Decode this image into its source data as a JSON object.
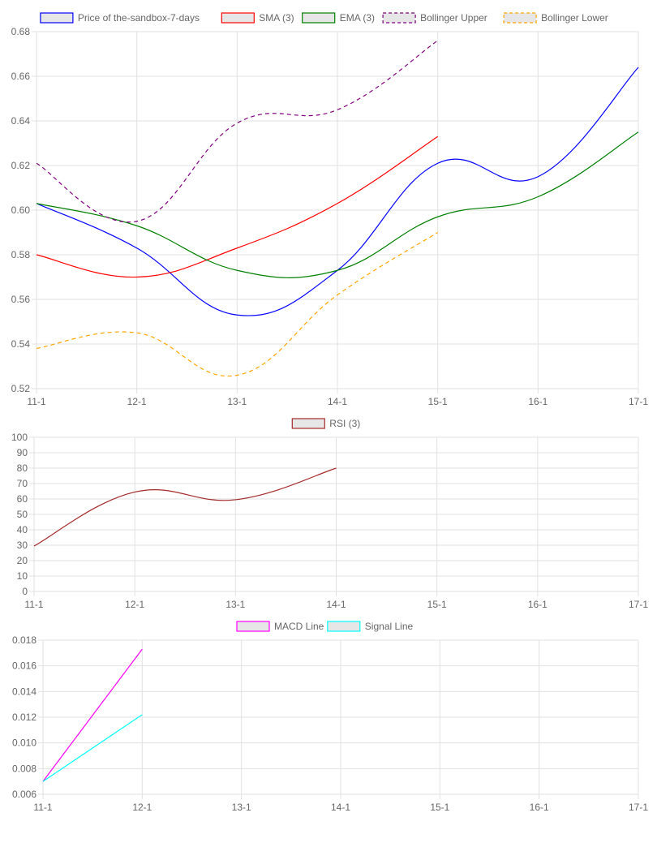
{
  "chart_data": [
    {
      "type": "line",
      "categories": [
        "11-1",
        "12-1",
        "13-1",
        "14-1",
        "15-1",
        "16-1",
        "17-1"
      ],
      "ylim": [
        0.52,
        0.68
      ],
      "yticks": [
        "0.52",
        "0.54",
        "0.56",
        "0.58",
        "0.60",
        "0.62",
        "0.64",
        "0.66",
        "0.68"
      ],
      "grid": true,
      "legend": "top-center",
      "series": [
        {
          "name": "Price of the-sandbox-7-days",
          "color": "#0000ff",
          "dashed": false,
          "values": [
            0.603,
            0.583,
            0.553,
            0.573,
            0.621,
            0.615,
            0.664
          ]
        },
        {
          "name": "SMA (3)",
          "color": "#ff0000",
          "dashed": false,
          "values": [
            0.58,
            0.57,
            0.583,
            0.603,
            0.633,
            null,
            null
          ]
        },
        {
          "name": "EMA (3)",
          "color": "#008000",
          "dashed": false,
          "values": [
            0.603,
            0.593,
            0.573,
            0.573,
            0.597,
            0.606,
            0.635
          ]
        },
        {
          "name": "Bollinger Upper",
          "color": "#800080",
          "dashed": true,
          "values": [
            0.621,
            0.595,
            0.639,
            0.645,
            0.676,
            null,
            null
          ]
        },
        {
          "name": "Bollinger Lower",
          "color": "#ffa500",
          "dashed": true,
          "values": [
            0.538,
            0.545,
            0.526,
            0.562,
            0.59,
            null,
            null
          ]
        }
      ]
    },
    {
      "type": "line",
      "categories": [
        "11-1",
        "12-1",
        "13-1",
        "14-1",
        "15-1",
        "16-1",
        "17-1"
      ],
      "ylim": [
        0,
        100
      ],
      "yticks": [
        "0",
        "10",
        "20",
        "30",
        "40",
        "50",
        "60",
        "70",
        "80",
        "90",
        "100"
      ],
      "grid": true,
      "legend": "top-center",
      "series": [
        {
          "name": "RSI (3)",
          "color": "#a52a2a",
          "dashed": false,
          "values": [
            29.5,
            64.5,
            59.5,
            80,
            null,
            null,
            null
          ]
        }
      ]
    },
    {
      "type": "line",
      "categories": [
        "11-1",
        "12-1",
        "13-1",
        "14-1",
        "15-1",
        "16-1",
        "17-1"
      ],
      "ylim": [
        0.006,
        0.018
      ],
      "yticks": [
        "0.006",
        "0.008",
        "0.010",
        "0.012",
        "0.014",
        "0.016",
        "0.018"
      ],
      "grid": true,
      "legend": "top-center",
      "series": [
        {
          "name": "MACD Line",
          "color": "#ff00ff",
          "dashed": false,
          "values": [
            0.007,
            0.0173,
            null,
            null,
            null,
            null,
            null
          ]
        },
        {
          "name": "Signal Line",
          "color": "#00ffff",
          "dashed": false,
          "values": [
            0.007,
            0.0122,
            null,
            null,
            null,
            null,
            null
          ]
        }
      ]
    }
  ]
}
